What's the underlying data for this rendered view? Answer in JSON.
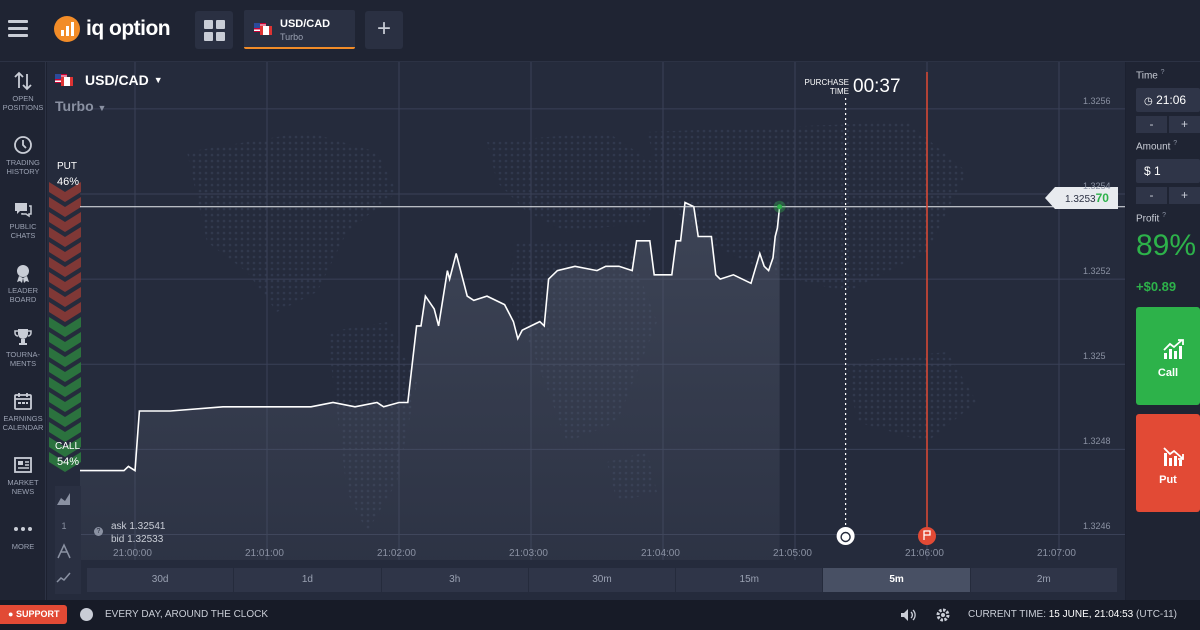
{
  "header": {
    "logo_text": "iq option",
    "asset_tab": {
      "name": "USD/CAD",
      "type": "Turbo"
    },
    "add_label": "+"
  },
  "sidebar": {
    "items": [
      {
        "label": "OPEN POSITIONS",
        "icon": "arrows-updown-icon"
      },
      {
        "label": "TRADING HISTORY",
        "icon": "history-icon"
      },
      {
        "label": "PUBLIC CHATS",
        "icon": "chat-icon"
      },
      {
        "label": "LEADER BOARD",
        "icon": "leaderboard-icon"
      },
      {
        "label": "TOURNA-MENTS",
        "icon": "trophy-icon"
      },
      {
        "label": "EARNINGS CALENDAR",
        "icon": "calendar-icon"
      },
      {
        "label": "MARKET NEWS",
        "icon": "news-icon"
      },
      {
        "label": "MORE",
        "icon": "more-icon"
      }
    ]
  },
  "chart": {
    "pair": "USD/CAD",
    "mode": "Turbo",
    "put_label": "PUT",
    "put_pct": "46%",
    "call_label": "CALL",
    "call_pct": "54%",
    "purchase_label_1": "PURCHASE",
    "purchase_label_2": "TIME",
    "purchase_time": "00:37",
    "current_price": "1.32537",
    "current_price_main": "1.3253",
    "current_price_tail": "70",
    "ask": "ask 1.32541",
    "bid": "bid 1.32533",
    "y_ticks": [
      "1.3256",
      "1.3254",
      "1.3252",
      "1.325",
      "1.3248",
      "1.3246"
    ],
    "x_ticks": [
      "21:00:00",
      "21:01:00",
      "21:02:00",
      "21:03:00",
      "21:04:00",
      "21:05:00",
      "21:06:00",
      "21:07:00"
    ],
    "timeframes": [
      "30d",
      "1d",
      "3h",
      "30m",
      "15m",
      "5m",
      "2m"
    ],
    "active_timeframe": "5m",
    "colors": {
      "up": "#2db24a",
      "down": "#e24a35",
      "expiry": "#e24a35"
    }
  },
  "chart_data": {
    "type": "line",
    "xlabel": "",
    "ylabel": "",
    "ylim": [
      1.32454,
      1.32571
    ],
    "x_range": [
      "20:59:35",
      "21:07:30"
    ],
    "series": [
      {
        "points": [
          [
            "20:59:35",
            1.32475
          ],
          [
            "20:59:55",
            1.32475
          ],
          [
            "20:59:57",
            1.32476
          ],
          [
            "21:00:00",
            1.32475
          ],
          [
            "21:00:02",
            1.32489
          ],
          [
            "21:00:03",
            1.32489
          ],
          [
            "21:00:10",
            1.32489
          ],
          [
            "21:00:16",
            1.32489
          ],
          [
            "21:00:40",
            1.3249
          ],
          [
            "21:01:00",
            1.3249
          ],
          [
            "21:01:20",
            1.3249
          ],
          [
            "21:01:30",
            1.32491
          ],
          [
            "21:01:40",
            1.3249
          ],
          [
            "21:01:50",
            1.32491
          ],
          [
            "21:01:53",
            1.3249
          ],
          [
            "21:02:00",
            1.32491
          ],
          [
            "21:02:04",
            1.32491
          ],
          [
            "21:02:08",
            1.32509
          ],
          [
            "21:02:10",
            1.32509
          ],
          [
            "21:02:12",
            1.32516
          ],
          [
            "21:02:16",
            1.32513
          ],
          [
            "21:02:18",
            1.32509
          ],
          [
            "21:02:22",
            1.32522
          ],
          [
            "21:02:23",
            1.3252
          ],
          [
            "21:02:26",
            1.32526
          ],
          [
            "21:02:31",
            1.32516
          ],
          [
            "21:02:34",
            1.32515
          ],
          [
            "21:02:40",
            1.32516
          ],
          [
            "21:02:48",
            1.32514
          ],
          [
            "21:02:52",
            1.3251
          ],
          [
            "21:02:54",
            1.32506
          ],
          [
            "21:02:56",
            1.32508
          ],
          [
            "21:03:00",
            1.32509
          ],
          [
            "21:03:04",
            1.3251
          ],
          [
            "21:03:06",
            1.32509
          ],
          [
            "21:03:08",
            1.3252
          ],
          [
            "21:03:12",
            1.32522
          ],
          [
            "21:03:20",
            1.32523
          ],
          [
            "21:03:30",
            1.32522
          ],
          [
            "21:03:34",
            1.32523
          ],
          [
            "21:03:40",
            1.32523
          ],
          [
            "21:03:46",
            1.32522
          ],
          [
            "21:03:48",
            1.32529
          ],
          [
            "21:03:54",
            1.32529
          ],
          [
            "21:03:56",
            1.32521
          ],
          [
            "21:04:00",
            1.32521
          ],
          [
            "21:04:04",
            1.32521
          ],
          [
            "21:04:06",
            1.32529
          ],
          [
            "21:04:08",
            1.32529
          ],
          [
            "21:04:10",
            1.32538
          ],
          [
            "21:04:14",
            1.32537
          ],
          [
            "21:04:16",
            1.3253
          ],
          [
            "21:04:22",
            1.3253
          ],
          [
            "21:04:24",
            1.32521
          ],
          [
            "21:04:26",
            1.3252
          ],
          [
            "21:04:32",
            1.32521
          ],
          [
            "21:04:40",
            1.32519
          ],
          [
            "21:04:44",
            1.32526
          ],
          [
            "21:04:46",
            1.32523
          ],
          [
            "21:04:48",
            1.32522
          ],
          [
            "21:04:50",
            1.32525
          ],
          [
            "21:04:51",
            1.3253
          ],
          [
            "21:04:52",
            1.32532
          ],
          [
            "21:04:53",
            1.32537
          ]
        ]
      }
    ],
    "expiry_time": "21:06:00",
    "purchase_deadline": "21:05:23"
  },
  "trade_panel": {
    "time_label": "Time",
    "time_value": "21:06",
    "amount_label": "Amount",
    "amount_value": "$ 1",
    "minus": "-",
    "plus": "+",
    "profit_label": "Profit",
    "profit_pct": "89%",
    "profit_amount": "+$0.89",
    "call_label": "Call",
    "put_label": "Put",
    "help_mark": "?"
  },
  "footer": {
    "support": "SUPPORT",
    "availability": "EVERY DAY, AROUND THE CLOCK",
    "current_time_label": "CURRENT TIME:",
    "current_time_value": "15 JUNE, 21:04:53",
    "timezone": "(UTC-11)"
  }
}
